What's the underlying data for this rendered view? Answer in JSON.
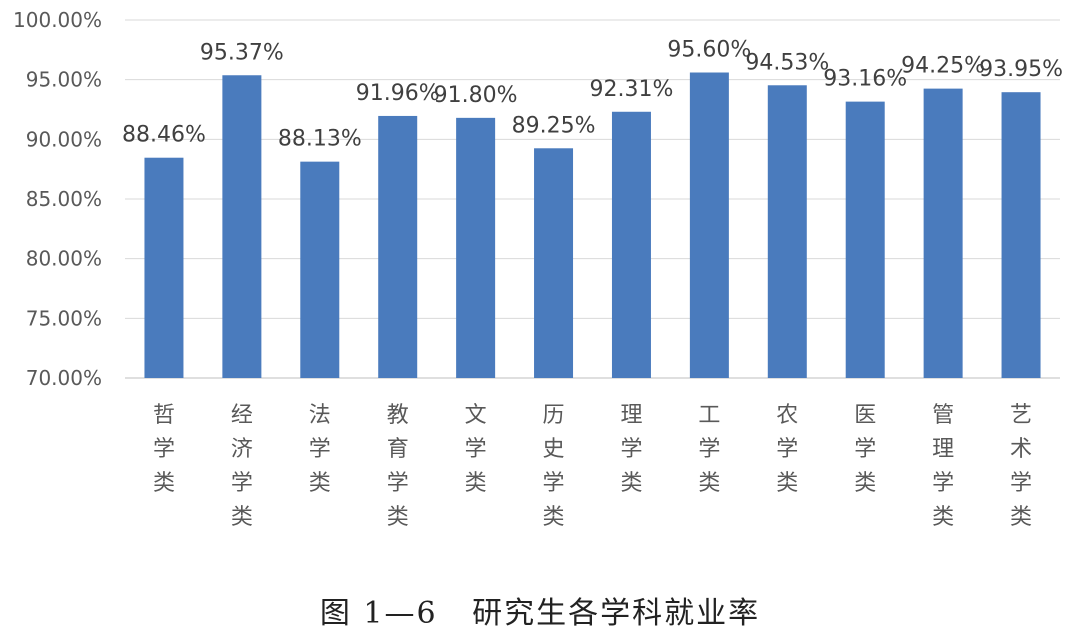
{
  "chart_data": {
    "type": "bar",
    "title": "",
    "xlabel": "",
    "ylabel": "",
    "ylim": [
      70,
      100
    ],
    "ytick_step": 5,
    "y_tick_labels": [
      "70.00%",
      "75.00%",
      "80.00%",
      "85.00%",
      "90.00%",
      "95.00%",
      "100.00%"
    ],
    "grid": true,
    "legend": "none",
    "bar_color": "#4a7bbd",
    "categories": [
      "哲学类",
      "经济学类",
      "法学类",
      "教育学类",
      "文学类",
      "历史学类",
      "理学类",
      "工学类",
      "农学类",
      "医学类",
      "管理学类",
      "艺术学类"
    ],
    "values": [
      88.46,
      95.37,
      88.13,
      91.96,
      91.8,
      89.25,
      92.31,
      95.6,
      94.53,
      93.16,
      94.25,
      93.95
    ],
    "data_labels": [
      "88.46%",
      "95.37%",
      "88.13%",
      "91.96%",
      "91.80%",
      "89.25%",
      "92.31%",
      "95.60%",
      "94.53%",
      "93.16%",
      "94.25%",
      "93.95%"
    ]
  },
  "caption": "图 1—6   研究生各学科就业率"
}
